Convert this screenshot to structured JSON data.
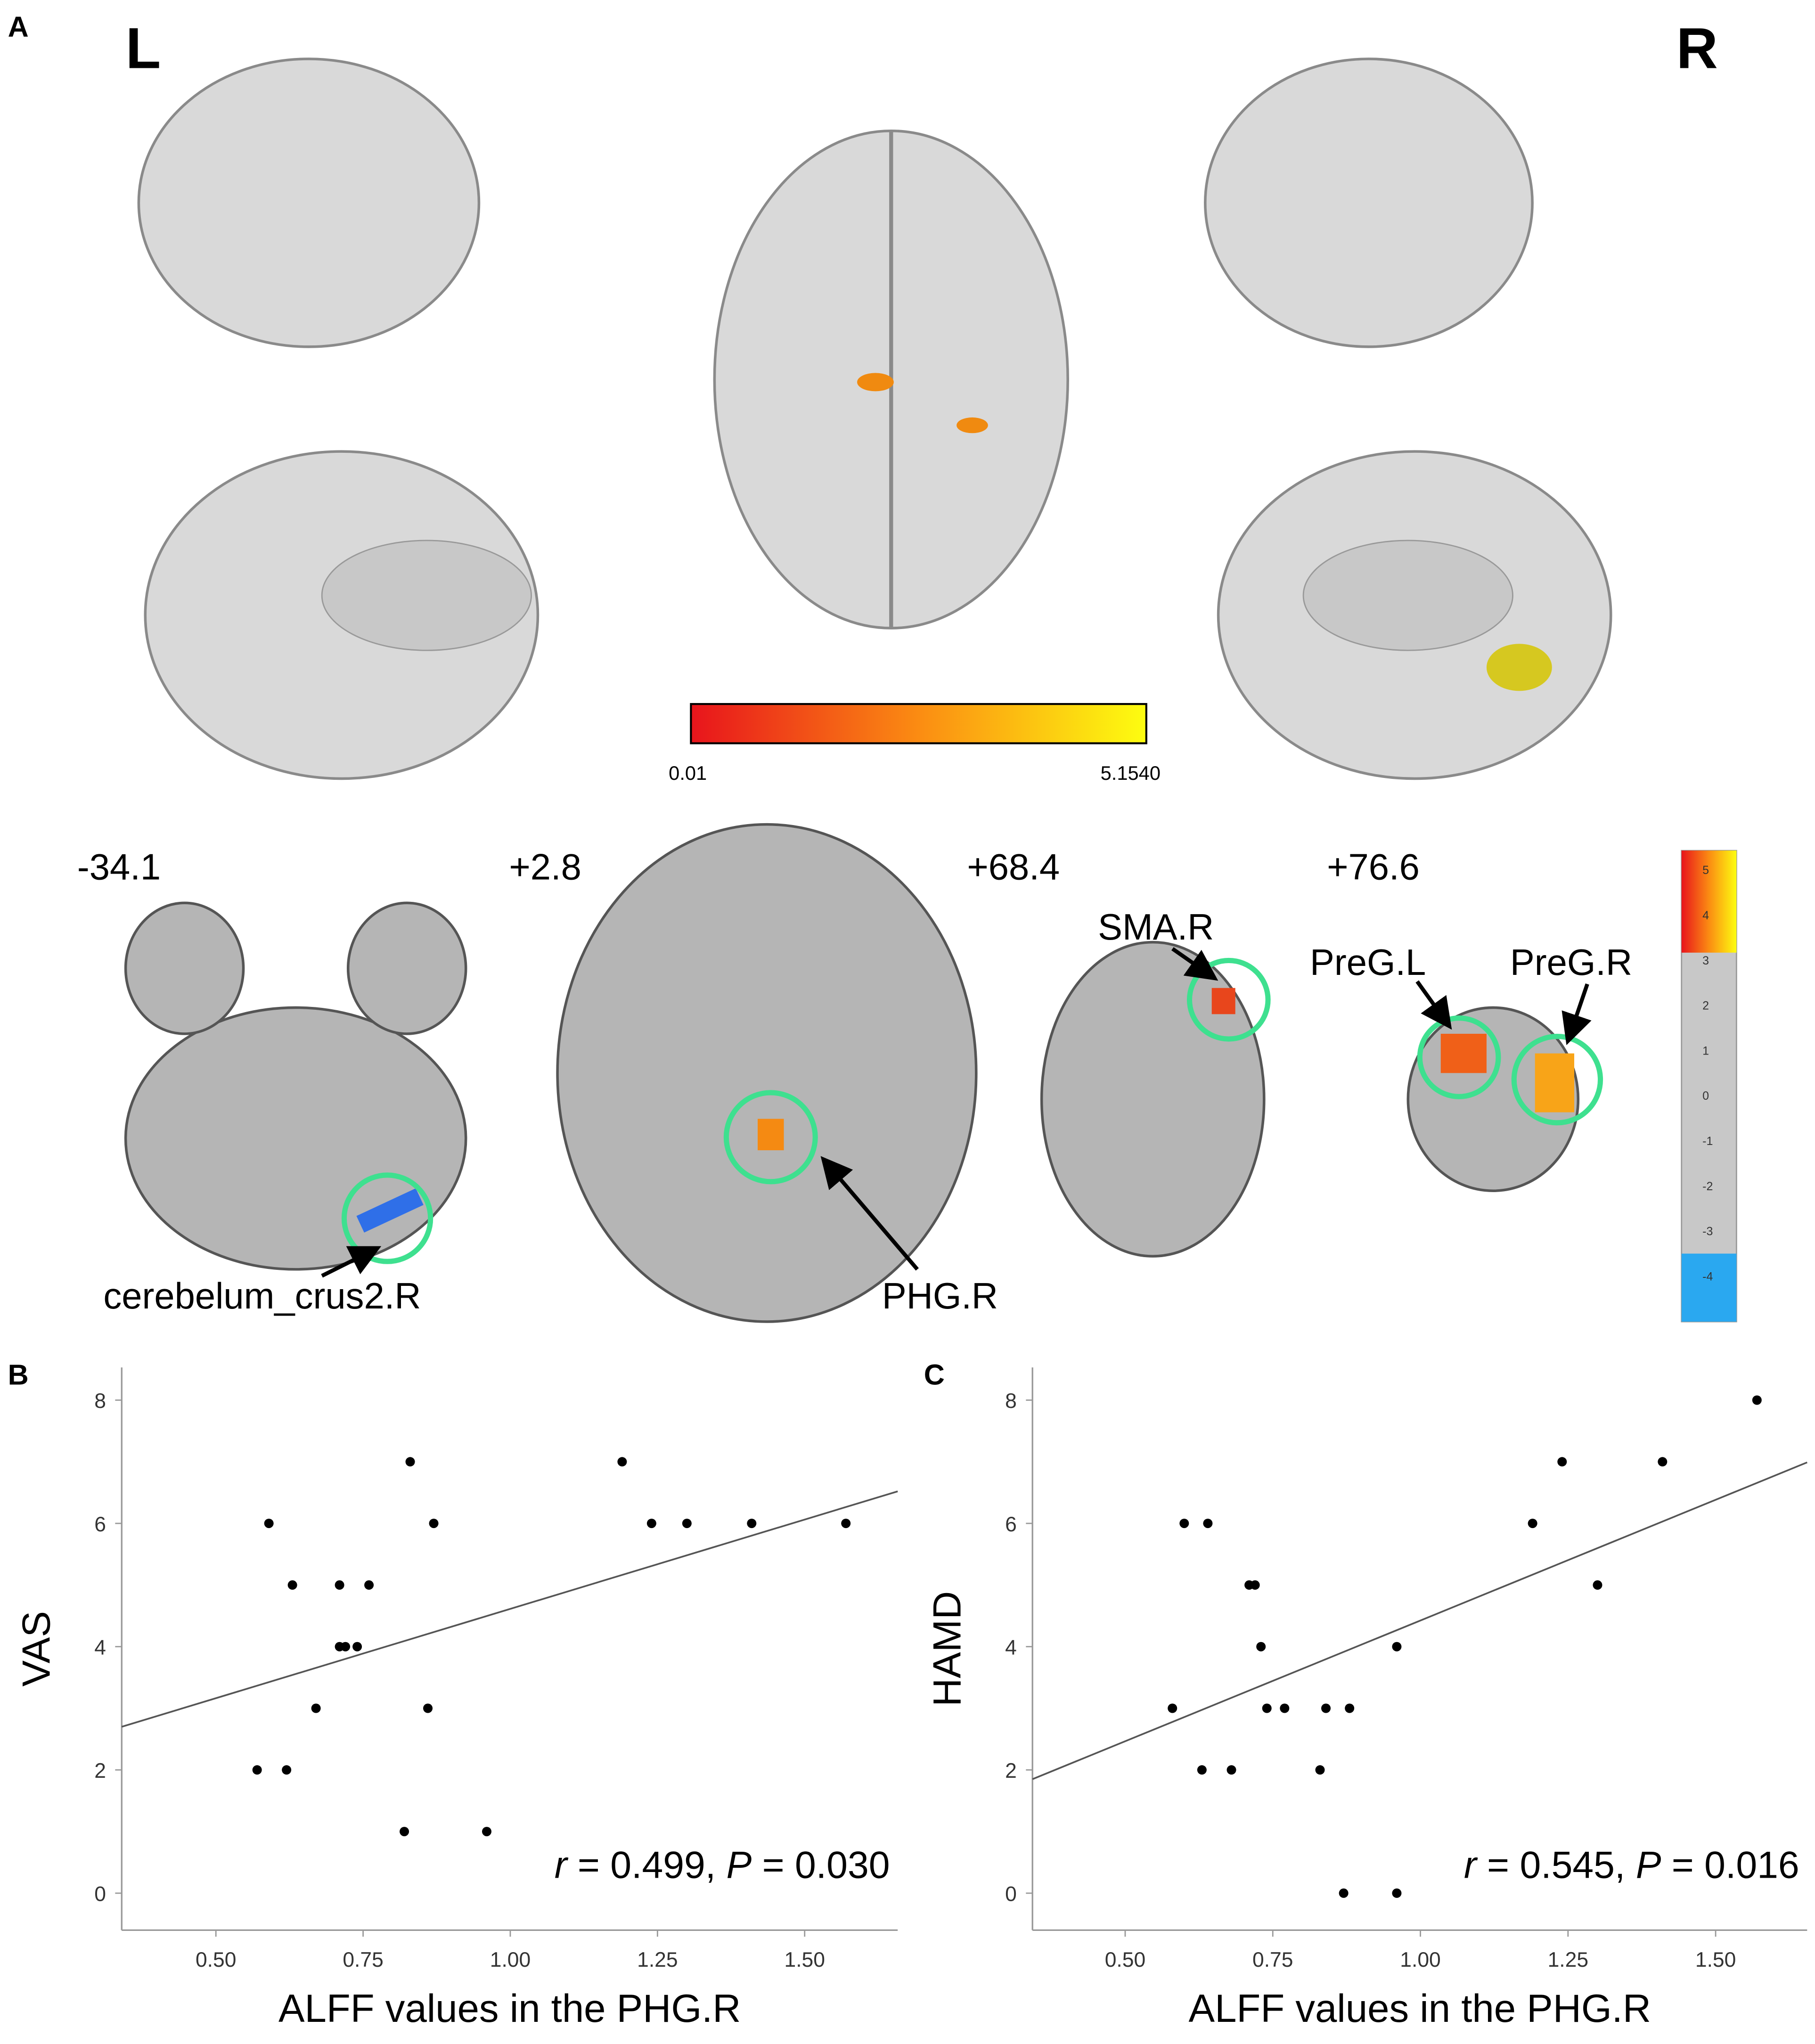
{
  "figure": {
    "panel_labels": [
      "A",
      "B",
      "C"
    ],
    "hemisphere_labels": [
      "L",
      "R"
    ],
    "surface_colorbar": {
      "min_label": "0.01",
      "max_label": "5.1540"
    },
    "slices": [
      {
        "coord": "-34.1",
        "labels": [
          "cerebelum_crus2.R"
        ]
      },
      {
        "coord": "+2.8",
        "labels": [
          "PHG.R"
        ]
      },
      {
        "coord": "+68.4",
        "labels": [
          "SMA.R"
        ]
      },
      {
        "coord": "+76.6",
        "labels": [
          "PreG.L",
          "PreG.R"
        ]
      }
    ],
    "slice_colorbar_ticks": [
      "5",
      "4",
      "3",
      "2",
      "1",
      "0",
      "-1",
      "-2",
      "-3",
      "-4"
    ]
  },
  "chart_data": [
    {
      "type": "scatter",
      "y_label": "VAS",
      "x_label": "ALFF values in the PHG.R",
      "annotation": [
        "r",
        " = 0.499, ",
        "P",
        " = 0.030"
      ],
      "x": [
        0.57,
        0.59,
        0.62,
        0.63,
        0.67,
        0.71,
        0.71,
        0.72,
        0.74,
        0.76,
        0.83,
        0.82,
        0.86,
        0.87,
        0.96,
        1.19,
        1.24,
        1.3,
        1.41,
        1.57
      ],
      "values": [
        2,
        6,
        2,
        5,
        3,
        5,
        4,
        4,
        4,
        5,
        7,
        1,
        3,
        6,
        1,
        7,
        6,
        6,
        6,
        6
      ],
      "color": "#000000",
      "fit": {
        "x": [
          0.34,
          1.658
        ],
        "y": [
          2.7,
          6.52
        ]
      },
      "xlim": [
        0.34,
        1.658
      ],
      "ylim": [
        -0.6,
        8.53
      ],
      "xticks": [
        {
          "value": 0.5,
          "label": "0.50"
        },
        {
          "value": 0.75,
          "label": "0.75"
        },
        {
          "value": 1.0,
          "label": "1.00"
        },
        {
          "value": 1.25,
          "label": "1.25"
        },
        {
          "value": 1.5,
          "label": "1.50"
        }
      ],
      "yticks": [
        0,
        2,
        4,
        6,
        8
      ]
    },
    {
      "type": "scatter",
      "y_label": "HAMD",
      "x_label": "ALFF values in the PHG.R",
      "annotation": [
        "r",
        " = 0.545, ",
        "P",
        " = 0.016"
      ],
      "x": [
        0.58,
        0.6,
        0.63,
        0.64,
        0.68,
        0.72,
        0.71,
        0.73,
        0.74,
        0.77,
        0.83,
        0.84,
        0.87,
        0.88,
        0.96,
        0.96,
        1.19,
        1.24,
        1.3,
        1.41,
        1.57
      ],
      "values": [
        3,
        6,
        2,
        6,
        2,
        5,
        5,
        4,
        3,
        3,
        2,
        3,
        0,
        3,
        4,
        0,
        6,
        7,
        5,
        7,
        8
      ],
      "color": "#000000",
      "fit": {
        "x": [
          0.343,
          1.655
        ],
        "y": [
          1.85,
          6.99
        ]
      },
      "xlim": [
        0.343,
        1.655
      ],
      "ylim": [
        -0.6,
        8.53
      ],
      "xticks": [
        {
          "value": 0.5,
          "label": "0.50"
        },
        {
          "value": 0.75,
          "label": "0.75"
        },
        {
          "value": 1.0,
          "label": "1.00"
        },
        {
          "value": 1.25,
          "label": "1.25"
        },
        {
          "value": 1.5,
          "label": "1.50"
        }
      ],
      "yticks": [
        0,
        2,
        4,
        6,
        8
      ]
    }
  ]
}
